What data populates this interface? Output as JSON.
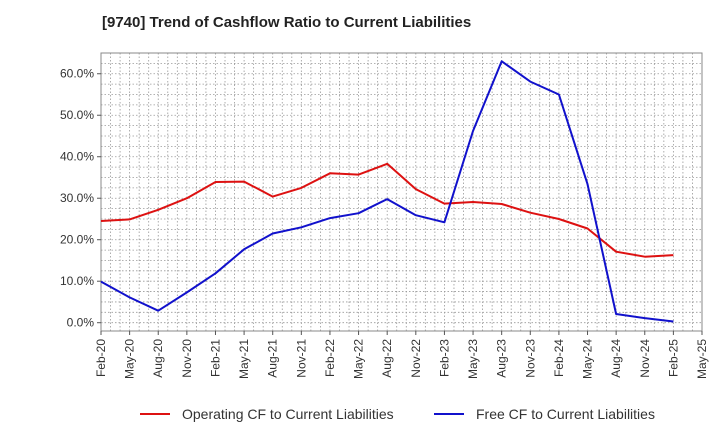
{
  "chart_data": {
    "type": "line",
    "title": "[9740]  Trend of Cashflow Ratio to Current Liabilities",
    "xlabel": "",
    "ylabel": "",
    "x_ticks": [
      "Feb-20",
      "May-20",
      "Aug-20",
      "Nov-20",
      "Feb-21",
      "May-21",
      "Aug-21",
      "Nov-21",
      "Feb-22",
      "May-22",
      "Aug-22",
      "Nov-22",
      "Feb-23",
      "May-23",
      "Aug-23",
      "Nov-23",
      "Feb-24",
      "May-24",
      "Aug-24",
      "Nov-24",
      "Feb-25",
      "May-25"
    ],
    "y_ticks": [
      "0.0%",
      "10.0%",
      "20.0%",
      "30.0%",
      "40.0%",
      "50.0%",
      "60.0%"
    ],
    "ylim": [
      -2,
      65
    ],
    "y_unit": "%",
    "grid": true,
    "legend_position": "bottom",
    "series": [
      {
        "name": "Operating CF to Current Liabilities",
        "color": "#dd1111",
        "values": [
          24.5,
          24.9,
          27.2,
          30.0,
          33.9,
          34.0,
          30.4,
          32.5,
          36.0,
          35.7,
          38.3,
          32.2,
          28.7,
          29.1,
          28.6,
          26.5,
          25.0,
          22.7,
          17.1,
          15.9,
          16.3
        ]
      },
      {
        "name": "Free CF to Current Liabilities",
        "color": "#1111cc",
        "values": [
          9.9,
          6.1,
          2.9,
          7.3,
          11.9,
          17.7,
          21.5,
          23.0,
          25.2,
          26.4,
          29.8,
          25.9,
          24.2,
          46.2,
          63.0,
          58.1,
          55.0,
          33.4,
          2.1,
          1.1,
          0.3
        ]
      }
    ]
  }
}
